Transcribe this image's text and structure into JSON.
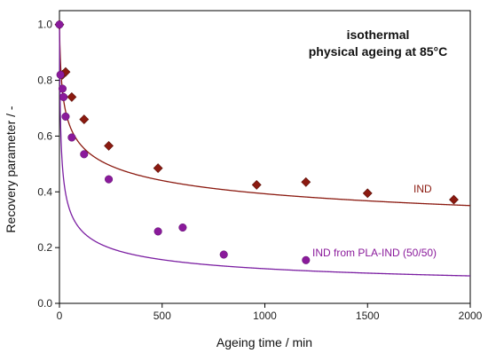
{
  "chart_data": {
    "type": "scatter",
    "title_lines": [
      "isothermal",
      "physical ageing at 85°C"
    ],
    "xlabel": "Ageing time / min",
    "ylabel": "Recovery parameter / -",
    "xlim": [
      0,
      2000
    ],
    "ylim": [
      0,
      1.05
    ],
    "xticks": [
      0,
      500,
      1000,
      1500,
      2000
    ],
    "yticks": [
      0.0,
      0.2,
      0.4,
      0.6,
      0.8,
      1.0
    ],
    "yticks_labels": [
      "0.0",
      "0.2",
      "0.4",
      "0.6",
      "0.8",
      "1.0"
    ],
    "grid": false,
    "series": [
      {
        "name": "IND",
        "marker": "diamond",
        "color": "#8b1a10",
        "line_color": "#8b1a10",
        "points": [
          {
            "x": 0,
            "y": 1.0
          },
          {
            "x": 15,
            "y": 0.82
          },
          {
            "x": 30,
            "y": 0.83
          },
          {
            "x": 60,
            "y": 0.74
          },
          {
            "x": 120,
            "y": 0.66
          },
          {
            "x": 240,
            "y": 0.565
          },
          {
            "x": 480,
            "y": 0.485
          },
          {
            "x": 960,
            "y": 0.425
          },
          {
            "x": 1200,
            "y": 0.435
          },
          {
            "x": 1500,
            "y": 0.395
          },
          {
            "x": 1920,
            "y": 0.372
          }
        ],
        "fit": {
          "type": "power",
          "a": 1.0,
          "t0": 3.5,
          "n": 0.165
        }
      },
      {
        "name": "IND from PLA-IND (50/50)",
        "marker": "circle",
        "color": "#8a1a9b",
        "line_color": "#7b1fa2",
        "points": [
          {
            "x": 0,
            "y": 1.0
          },
          {
            "x": 5,
            "y": 0.82
          },
          {
            "x": 15,
            "y": 0.77
          },
          {
            "x": 20,
            "y": 0.74
          },
          {
            "x": 30,
            "y": 0.67
          },
          {
            "x": 60,
            "y": 0.595
          },
          {
            "x": 120,
            "y": 0.535
          },
          {
            "x": 240,
            "y": 0.445
          },
          {
            "x": 480,
            "y": 0.258
          },
          {
            "x": 600,
            "y": 0.272
          },
          {
            "x": 800,
            "y": 0.175
          },
          {
            "x": 1200,
            "y": 0.155
          }
        ],
        "fit": {
          "type": "power",
          "a": 1.0,
          "t0": 2.0,
          "n": 0.3355
        }
      }
    ]
  }
}
